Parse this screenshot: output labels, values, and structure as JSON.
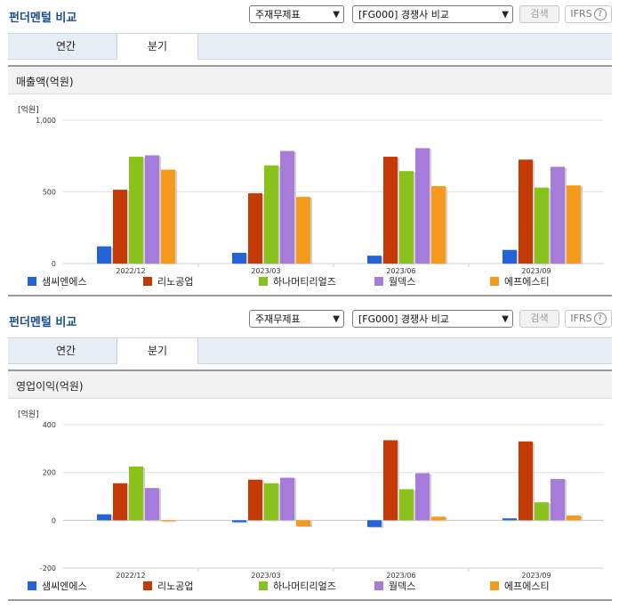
{
  "header": {
    "title": "펀더멘털 비교",
    "statement_select": "주재무제표",
    "compare_select": "[FG000] 경쟁사 비교",
    "search_button": "검색",
    "ifrs_label": "IFRS",
    "help_symbol": "?"
  },
  "tabs": [
    "연간",
    "분기"
  ],
  "active_tab": "분기",
  "colors": [
    "#2463d6",
    "#c43a05",
    "#88c21a",
    "#a67bd9",
    "#f59a1b"
  ],
  "chart_data": [
    {
      "type": "bar",
      "title": "매출액(억원)",
      "unit_label": "[억원]",
      "categories": [
        "2022/12",
        "2023/03",
        "2023/06",
        "2023/09"
      ],
      "ylim": [
        0,
        1000
      ],
      "yticks": [
        0,
        500,
        1000
      ],
      "ytick_labels": [
        "0",
        "500",
        "1,000"
      ],
      "grid": true,
      "legend_position": "bottom",
      "series": [
        {
          "name": "샘씨엔에스",
          "values": [
            120,
            75,
            55,
            95
          ]
        },
        {
          "name": "리노공업",
          "values": [
            515,
            490,
            745,
            725
          ]
        },
        {
          "name": "하나머티리얼즈",
          "values": [
            745,
            685,
            645,
            530
          ]
        },
        {
          "name": "월덱스",
          "values": [
            755,
            785,
            805,
            675
          ]
        },
        {
          "name": "에프에스티",
          "values": [
            655,
            465,
            540,
            545
          ]
        }
      ]
    },
    {
      "type": "bar",
      "title": "영업이익(억원)",
      "unit_label": "[억원]",
      "categories": [
        "2022/12",
        "2023/03",
        "2023/06",
        "2023/09"
      ],
      "ylim": [
        -200,
        400
      ],
      "yticks": [
        -200,
        0,
        200,
        400
      ],
      "ytick_labels": [
        "-200",
        "0",
        "200",
        "400"
      ],
      "grid": true,
      "legend_position": "bottom",
      "series": [
        {
          "name": "샘씨엔에스",
          "values": [
            25,
            -8,
            -28,
            8
          ]
        },
        {
          "name": "리노공업",
          "values": [
            155,
            170,
            335,
            330
          ]
        },
        {
          "name": "하나머티리얼즈",
          "values": [
            225,
            155,
            130,
            75
          ]
        },
        {
          "name": "월덱스",
          "values": [
            135,
            178,
            197,
            173
          ]
        },
        {
          "name": "에프에스티",
          "values": [
            -2,
            -25,
            15,
            20
          ]
        }
      ]
    }
  ]
}
